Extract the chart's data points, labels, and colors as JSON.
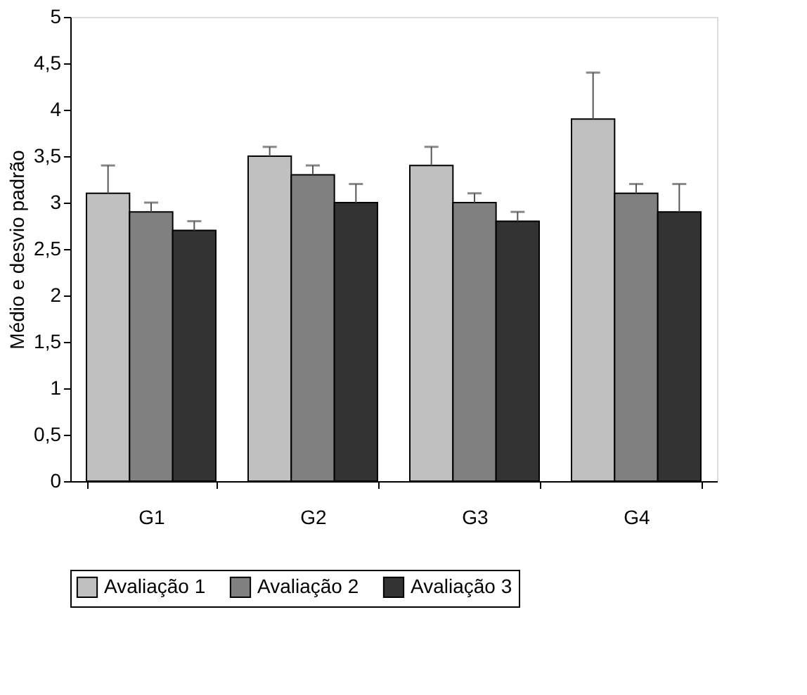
{
  "chart_data": {
    "type": "bar",
    "ylabel": "Médio e desvio padrão",
    "categories": [
      "G1",
      "G2",
      "G3",
      "G4"
    ],
    "series": [
      {
        "name": "Avaliação 1",
        "color": "#c0c0c0",
        "values": [
          3.1,
          3.5,
          3.4,
          3.9
        ],
        "errors": [
          [
            3.1,
            3.4
          ],
          [
            3.5,
            3.6
          ],
          [
            3.4,
            3.6
          ],
          [
            3.9,
            4.4
          ]
        ]
      },
      {
        "name": "Avaliação 2",
        "color": "#808080",
        "values": [
          2.9,
          3.3,
          3.0,
          3.1
        ],
        "errors": [
          [
            2.9,
            3.0
          ],
          [
            3.3,
            3.4
          ],
          [
            3.0,
            3.1
          ],
          [
            3.1,
            3.2
          ]
        ]
      },
      {
        "name": "Avaliação 3",
        "color": "#333333",
        "values": [
          2.7,
          3.0,
          2.8,
          2.9
        ],
        "errors": [
          [
            2.7,
            2.8
          ],
          [
            3.0,
            3.2
          ],
          [
            2.8,
            2.9
          ],
          [
            2.9,
            3.2
          ]
        ]
      }
    ],
    "ylim": [
      0,
      5
    ],
    "yticks": [
      0,
      {
        "value": 0.5,
        "label": "0,5"
      },
      1,
      {
        "value": 1.5,
        "label": "1,5"
      },
      2,
      {
        "value": 2.5,
        "label": "2,5"
      },
      3,
      {
        "value": 3.5,
        "label": "3,5"
      },
      4,
      {
        "value": 4.5,
        "label": "4,5"
      },
      5
    ],
    "grid": false,
    "legend": "bottom"
  }
}
